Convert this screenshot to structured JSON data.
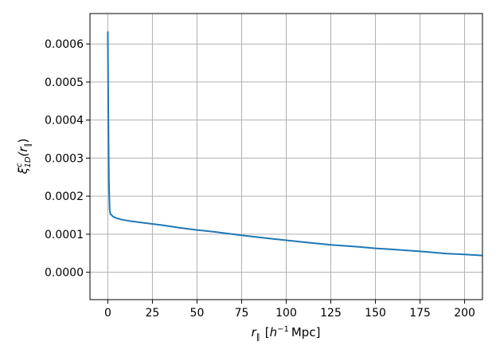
{
  "chart_data": {
    "type": "line",
    "title": "",
    "xlabel_parts": {
      "var": "r",
      "sub": "∥",
      "unit_open": "[",
      "h": "h",
      "exp": "−1",
      "unit": "Mpc]"
    },
    "ylabel_parts": {
      "xi": "ξ",
      "sup": "c",
      "sub": "1D",
      "open": "(r",
      "subpar": "∥",
      "close": ")"
    },
    "xlim": [
      -10,
      210
    ],
    "ylim": [
      -7.2e-05,
      0.00068
    ],
    "x_ticks": [
      0,
      25,
      50,
      75,
      100,
      125,
      150,
      175,
      200
    ],
    "x_tick_labels": [
      "0",
      "25",
      "50",
      "75",
      "100",
      "125",
      "150",
      "175",
      "200"
    ],
    "y_ticks": [
      0.0,
      0.0001,
      0.0002,
      0.0003,
      0.0004,
      0.0005,
      0.0006
    ],
    "y_tick_labels": [
      "0.0000",
      "0.0001",
      "0.0002",
      "0.0003",
      "0.0004",
      "0.0005",
      "0.0006"
    ],
    "grid": true,
    "series": [
      {
        "color": "#1f77b4",
        "x": [
          0,
          0.3,
          0.6,
          1.0,
          1.5,
          2,
          3,
          5,
          8,
          12,
          15,
          20,
          25,
          30,
          40,
          50,
          60,
          75,
          90,
          100,
          110,
          125,
          140,
          150,
          160,
          175,
          190,
          200,
          210
        ],
        "y": [
          0.000633,
          0.0004,
          0.00024,
          0.000165,
          0.000152,
          0.000151,
          0.000146,
          0.000142,
          0.000138,
          0.000135,
          0.000133,
          0.00013,
          0.000127,
          0.000124,
          0.000117,
          0.000111,
          0.000106,
          9.7e-05,
          8.9e-05,
          8.4e-05,
          7.9e-05,
          7.2e-05,
          6.7e-05,
          6.3e-05,
          6e-05,
          5.5e-05,
          4.9e-05,
          4.7e-05,
          4.4e-05
        ]
      }
    ]
  }
}
